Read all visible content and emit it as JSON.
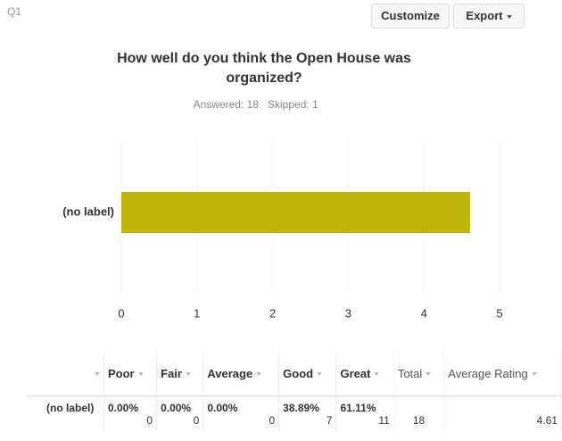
{
  "header": {
    "question": "Q1",
    "buttons": [
      "Customize",
      "Export"
    ]
  },
  "chart_data": {
    "type": "bar",
    "orientation": "horizontal",
    "title": [
      "How well do you think the Open House was",
      "organized?"
    ],
    "subtitle": [
      "Answered: 18",
      "Skipped: 1"
    ],
    "categories": [
      "(no label)"
    ],
    "values": [
      4.61
    ],
    "color": "#bfb30c",
    "xlim": [
      0,
      5
    ],
    "xticks": [
      0,
      1,
      2,
      3,
      4,
      5
    ],
    "grid": true
  },
  "table": {
    "headers": [
      "Poor",
      "Fair",
      "Average",
      "Good",
      "Great",
      "Total",
      "Average Rating"
    ],
    "rows": [
      {
        "label": "(no label)",
        "cells": [
          [
            "0.00%",
            "0"
          ],
          [
            "0.00%",
            "0"
          ],
          [
            "0.00%",
            "0"
          ],
          [
            "38.89%",
            "7"
          ],
          [
            "61.11%",
            "11"
          ]
        ],
        "total": "18",
        "average": "4.61"
      }
    ]
  }
}
